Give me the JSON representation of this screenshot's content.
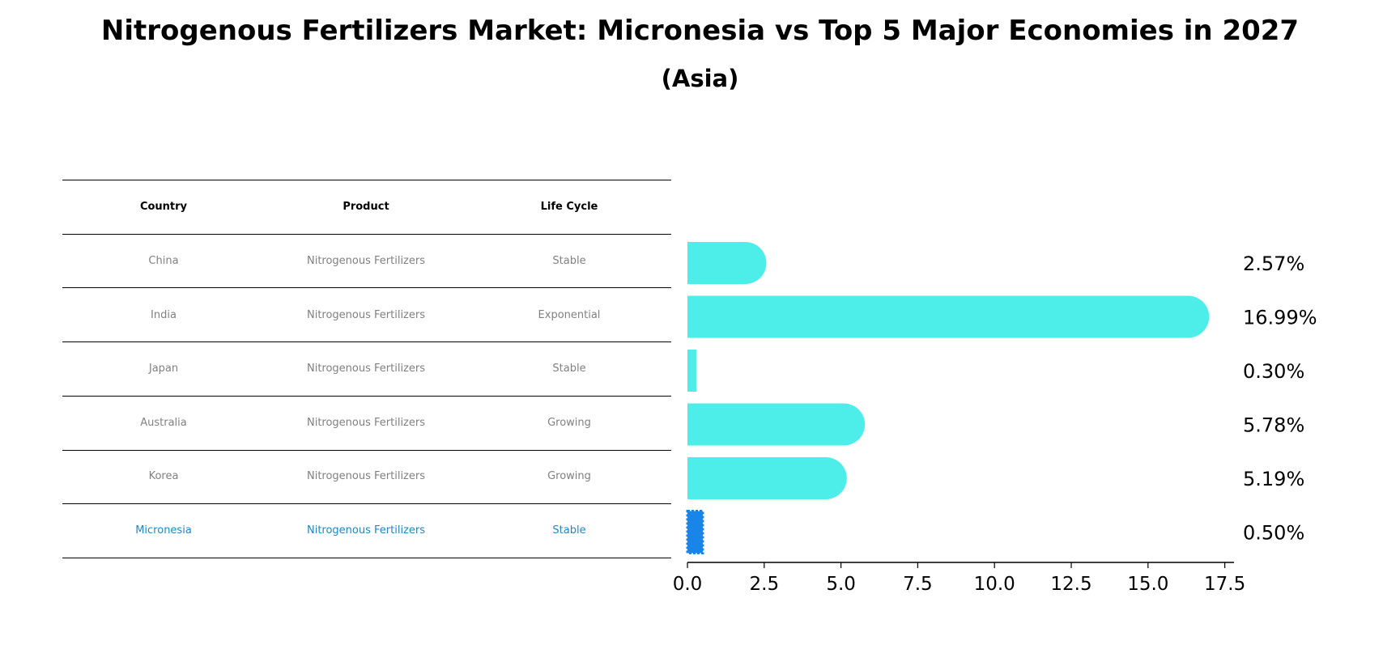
{
  "title": "Nitrogenous Fertilizers Market: Micronesia vs Top 5 Major Economies in 2027",
  "subtitle": "(Asia)",
  "table": {
    "headers": [
      "Country",
      "Product",
      "Life Cycle"
    ],
    "rows": [
      {
        "country": "China",
        "product": "Nitrogenous Fertilizers",
        "life_cycle": "Stable",
        "highlight": false
      },
      {
        "country": "India",
        "product": "Nitrogenous Fertilizers",
        "life_cycle": "Exponential",
        "highlight": false
      },
      {
        "country": "Japan",
        "product": "Nitrogenous Fertilizers",
        "life_cycle": "Stable",
        "highlight": false
      },
      {
        "country": "Australia",
        "product": "Nitrogenous Fertilizers",
        "life_cycle": "Growing",
        "highlight": false
      },
      {
        "country": "Korea",
        "product": "Nitrogenous Fertilizers",
        "life_cycle": "Growing",
        "highlight": false
      },
      {
        "country": "Micronesia",
        "product": "Nitrogenous Fertilizers",
        "life_cycle": "Stable",
        "highlight": true
      }
    ]
  },
  "chart_data": {
    "type": "bar",
    "orientation": "horizontal",
    "categories": [
      "China",
      "India",
      "Japan",
      "Australia",
      "Korea",
      "Micronesia"
    ],
    "values": [
      2.57,
      16.99,
      0.3,
      5.78,
      5.19,
      0.5
    ],
    "value_labels": [
      "2.57%",
      "16.99%",
      "0.30%",
      "5.78%",
      "5.19%",
      "0.50%"
    ],
    "x_ticks": [
      "0.0",
      "2.5",
      "5.0",
      "7.5",
      "10.0",
      "12.5",
      "15.0",
      "17.5"
    ],
    "xlim": [
      0,
      17.8
    ],
    "xlabel": "",
    "ylabel": "",
    "grid": false,
    "colors": {
      "default": "#4deeea",
      "highlight": "#1a85e8",
      "highlight_text": "#1f87c8"
    }
  }
}
